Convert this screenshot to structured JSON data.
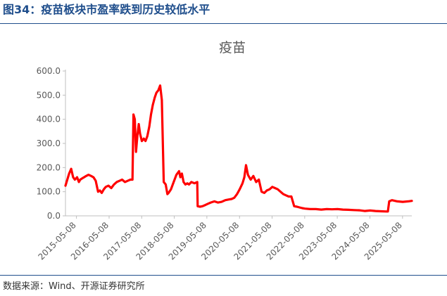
{
  "figure": {
    "title": "图34：疫苗板块市盈率跌到历史较低水平",
    "source": "数据来源：Wind、开源证券研究所"
  },
  "colors": {
    "accent": "#1f4e8c",
    "series": "#ff0000",
    "axis_text": "#595959"
  },
  "chart_data": {
    "type": "line",
    "title": "疫苗",
    "xlabel": "",
    "ylabel": "",
    "ylim": [
      0,
      600
    ],
    "yticks": [
      "0.0",
      "100.0",
      "200.0",
      "300.0",
      "400.0",
      "500.0",
      "600.0"
    ],
    "xticks": [
      "2015-05-08",
      "2016-05-08",
      "2017-05-08",
      "2018-05-08",
      "2019-05-08",
      "2020-05-08",
      "2021-05-08",
      "2022-05-08",
      "2023-05-08",
      "2024-05-08",
      "2025-05-08"
    ],
    "grid": false,
    "legend": "none",
    "series": [
      {
        "name": "",
        "x": [
          "2015-01-05",
          "2015-02-15",
          "2015-03-10",
          "2015-04-01",
          "2015-04-20",
          "2015-05-15",
          "2015-06-05",
          "2015-06-20",
          "2015-07-10",
          "2015-08-01",
          "2015-08-25",
          "2015-09-20",
          "2015-10-20",
          "2015-11-15",
          "2015-12-10",
          "2016-01-05",
          "2016-01-25",
          "2016-02-15",
          "2016-03-10",
          "2016-04-01",
          "2016-05-01",
          "2016-06-01",
          "2016-07-01",
          "2016-08-01",
          "2016-09-01",
          "2016-10-01",
          "2016-11-01",
          "2016-12-01",
          "2017-01-01",
          "2017-01-25",
          "2017-02-05",
          "2017-02-20",
          "2017-03-05",
          "2017-03-20",
          "2017-04-05",
          "2017-04-20",
          "2017-05-10",
          "2017-06-01",
          "2017-06-20",
          "2017-07-10",
          "2017-08-01",
          "2017-08-20",
          "2017-09-10",
          "2017-10-01",
          "2017-10-20",
          "2017-11-10",
          "2017-12-01",
          "2017-12-20",
          "2018-01-10",
          "2018-02-01",
          "2018-02-20",
          "2018-03-05",
          "2018-04-01",
          "2018-05-01",
          "2018-06-01",
          "2018-07-01",
          "2018-07-15",
          "2018-08-01",
          "2018-08-20",
          "2018-09-10",
          "2018-10-01",
          "2018-10-20",
          "2018-11-15",
          "2018-12-20",
          "2019-01-20",
          "2019-01-25",
          "2019-02-20",
          "2019-03-20",
          "2019-04-20",
          "2019-05-20",
          "2019-06-20",
          "2019-08-01",
          "2019-09-10",
          "2019-10-20",
          "2019-12-01",
          "2020-01-10",
          "2020-02-10",
          "2020-03-10",
          "2020-04-10",
          "2020-05-10",
          "2020-06-10",
          "2020-07-01",
          "2020-07-20",
          "2020-08-10",
          "2020-09-10",
          "2020-10-10",
          "2020-11-10",
          "2020-12-10",
          "2021-01-10",
          "2021-02-10",
          "2021-03-10",
          "2021-04-10",
          "2021-05-10",
          "2021-06-10",
          "2021-07-10",
          "2021-08-10",
          "2021-09-10",
          "2021-10-10",
          "2021-11-10",
          "2021-12-10",
          "2022-01-10",
          "2022-02-10",
          "2022-03-10",
          "2022-04-10",
          "2022-05-10",
          "2022-07-10",
          "2022-09-10",
          "2022-11-10",
          "2023-01-10",
          "2023-03-10",
          "2023-05-10",
          "2023-07-10",
          "2023-09-10",
          "2023-11-10",
          "2024-01-10",
          "2024-03-10",
          "2024-05-10",
          "2024-07-10",
          "2024-09-10",
          "2024-11-10",
          "2024-11-25",
          "2024-12-10",
          "2025-01-10",
          "2025-03-10",
          "2025-05-10",
          "2025-07-10",
          "2025-08-20"
        ],
        "values": [
          125,
          175,
          195,
          160,
          150,
          160,
          140,
          150,
          155,
          160,
          165,
          170,
          165,
          160,
          145,
          100,
          105,
          95,
          110,
          120,
          125,
          115,
          130,
          140,
          145,
          150,
          140,
          145,
          150,
          150,
          420,
          400,
          265,
          330,
          380,
          340,
          310,
          320,
          310,
          330,
          370,
          420,
          460,
          490,
          510,
          520,
          540,
          480,
          140,
          130,
          90,
          95,
          110,
          140,
          170,
          185,
          160,
          175,
          140,
          130,
          135,
          130,
          140,
          135,
          140,
          40,
          38,
          40,
          45,
          50,
          55,
          60,
          55,
          58,
          65,
          68,
          70,
          75,
          90,
          110,
          135,
          160,
          210,
          170,
          150,
          165,
          140,
          150,
          100,
          95,
          105,
          110,
          120,
          115,
          110,
          100,
          90,
          85,
          80,
          80,
          40,
          38,
          35,
          32,
          30,
          28,
          28,
          26,
          28,
          27,
          28,
          26,
          25,
          24,
          23,
          20,
          22,
          20,
          19,
          18,
          18,
          60,
          65,
          60,
          58,
          60,
          62
        ]
      }
    ]
  }
}
